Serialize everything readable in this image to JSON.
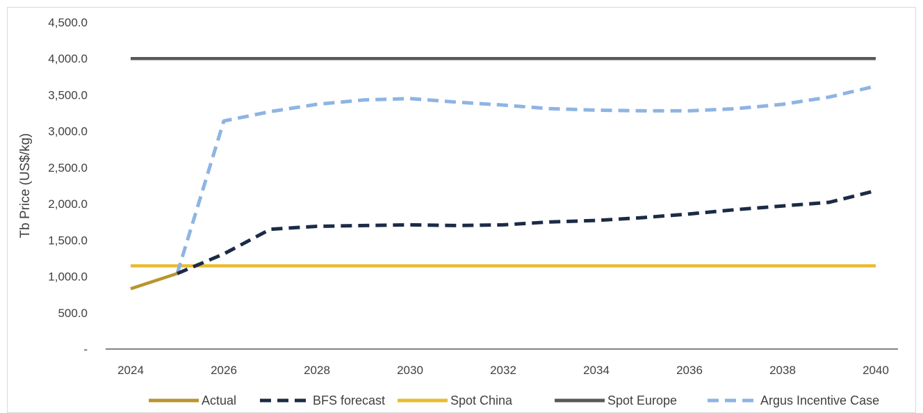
{
  "chart_data": {
    "type": "line",
    "ylabel": "Tb Price (US$/kg)",
    "xlabel": "",
    "ylim": [
      0,
      4500
    ],
    "yticks": [
      0,
      500,
      1000,
      1500,
      2000,
      2500,
      3000,
      3500,
      4000,
      4500
    ],
    "ytick_labels": [
      "-",
      "500.0",
      "1,000.0",
      "1,500.0",
      "2,000.0",
      "2,500.0",
      "3,000.0",
      "3,500.0",
      "4,000.0",
      "4,500.0"
    ],
    "xlim": [
      2024,
      2040
    ],
    "xticks": [
      2024,
      2026,
      2028,
      2030,
      2032,
      2034,
      2036,
      2038,
      2040
    ],
    "xtick_labels": [
      "2024",
      "2026",
      "2028",
      "2030",
      "2032",
      "2034",
      "2036",
      "2038",
      "2040"
    ],
    "grid": false,
    "legend_position": "bottom",
    "series": [
      {
        "name": "Actual",
        "color": "#b8962e",
        "style": "solid",
        "x": [
          2024,
          2025
        ],
        "y": [
          830,
          1040
        ]
      },
      {
        "name": "BFS forecast",
        "color": "#1c2b45",
        "style": "dashed",
        "x": [
          2025,
          2026,
          2027,
          2028,
          2029,
          2030,
          2031,
          2032,
          2033,
          2034,
          2035,
          2036,
          2037,
          2038,
          2039,
          2040
        ],
        "y": [
          1040,
          1310,
          1650,
          1690,
          1700,
          1710,
          1700,
          1710,
          1750,
          1770,
          1810,
          1860,
          1920,
          1970,
          2020,
          2180
        ]
      },
      {
        "name": "Spot China",
        "color": "#e8bb2e",
        "style": "solid",
        "x": [
          2024,
          2040
        ],
        "y": [
          1145,
          1145
        ]
      },
      {
        "name": "Spot Europe",
        "color": "#595959",
        "style": "solid",
        "x": [
          2024,
          2040
        ],
        "y": [
          4000,
          4000
        ]
      },
      {
        "name": "Argus Incentive Case",
        "color": "#8eb4e3",
        "style": "dashed",
        "x": [
          2025,
          2026,
          2027,
          2028,
          2029,
          2030,
          2031,
          2032,
          2033,
          2034,
          2035,
          2036,
          2037,
          2038,
          2039,
          2040
        ],
        "y": [
          1040,
          3140,
          3270,
          3370,
          3430,
          3450,
          3400,
          3360,
          3310,
          3290,
          3280,
          3280,
          3310,
          3370,
          3470,
          3620
        ]
      }
    ]
  }
}
